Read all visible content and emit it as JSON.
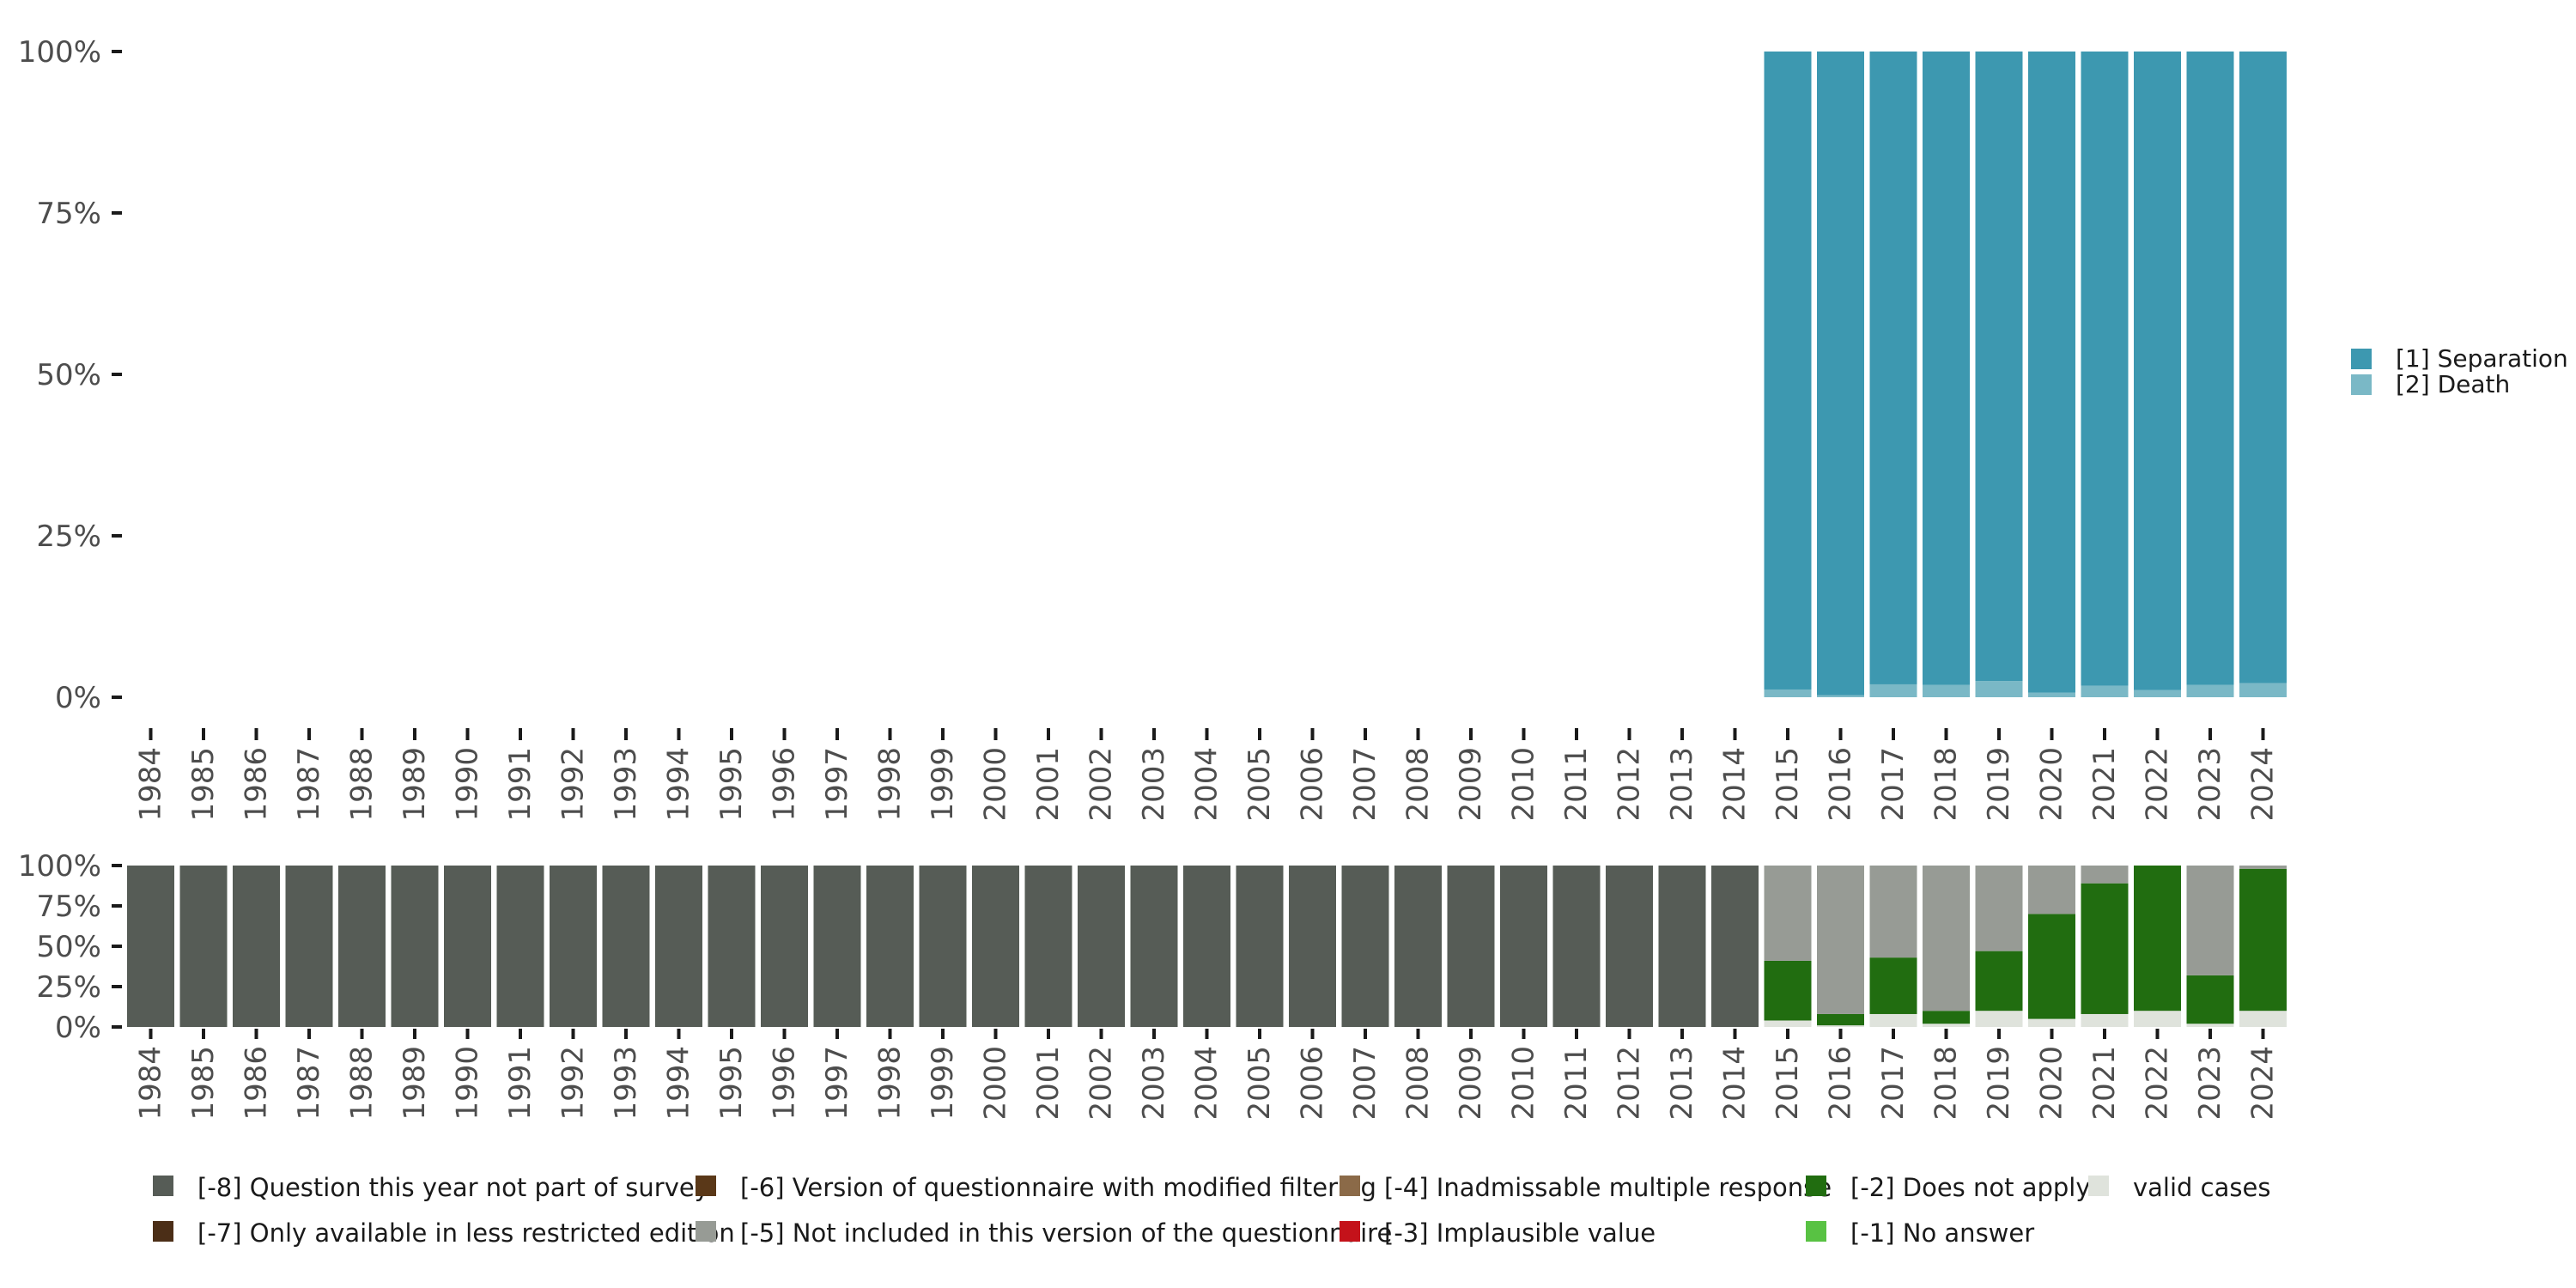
{
  "chart_data": [
    {
      "type": "bar",
      "stacked": true,
      "percent": true,
      "categories": [
        "1984",
        "1985",
        "1986",
        "1987",
        "1988",
        "1989",
        "1990",
        "1991",
        "1992",
        "1993",
        "1994",
        "1995",
        "1996",
        "1997",
        "1998",
        "1999",
        "2000",
        "2001",
        "2002",
        "2003",
        "2004",
        "2005",
        "2006",
        "2007",
        "2008",
        "2009",
        "2010",
        "2011",
        "2012",
        "2013",
        "2014",
        "2015",
        "2016",
        "2017",
        "2018",
        "2019",
        "2020",
        "2021",
        "2022",
        "2023",
        "2024"
      ],
      "ylim": [
        0,
        100
      ],
      "yticks": [
        "0%",
        "25%",
        "50%",
        "75%",
        "100%"
      ],
      "legend_position": "right",
      "series": [
        {
          "name": "[2] Death",
          "color": "#7ab8c6",
          "values": [
            null,
            null,
            null,
            null,
            null,
            null,
            null,
            null,
            null,
            null,
            null,
            null,
            null,
            null,
            null,
            null,
            null,
            null,
            null,
            null,
            null,
            null,
            null,
            null,
            null,
            null,
            null,
            null,
            null,
            null,
            null,
            1.2,
            0.3,
            2.0,
            1.9,
            2.5,
            0.7,
            1.8,
            1.1,
            1.9,
            2.2
          ]
        },
        {
          "name": "[1] Separation",
          "color": "#3d98b0",
          "values": [
            null,
            null,
            null,
            null,
            null,
            null,
            null,
            null,
            null,
            null,
            null,
            null,
            null,
            null,
            null,
            null,
            null,
            null,
            null,
            null,
            null,
            null,
            null,
            null,
            null,
            null,
            null,
            null,
            null,
            null,
            null,
            98.8,
            99.7,
            98.0,
            98.1,
            97.5,
            99.3,
            98.2,
            98.9,
            98.1,
            97.8
          ]
        }
      ]
    },
    {
      "type": "bar",
      "stacked": true,
      "percent": true,
      "categories": [
        "1984",
        "1985",
        "1986",
        "1987",
        "1988",
        "1989",
        "1990",
        "1991",
        "1992",
        "1993",
        "1994",
        "1995",
        "1996",
        "1997",
        "1998",
        "1999",
        "2000",
        "2001",
        "2002",
        "2003",
        "2004",
        "2005",
        "2006",
        "2007",
        "2008",
        "2009",
        "2010",
        "2011",
        "2012",
        "2013",
        "2014",
        "2015",
        "2016",
        "2017",
        "2018",
        "2019",
        "2020",
        "2021",
        "2022",
        "2023",
        "2024"
      ],
      "ylim": [
        0,
        100
      ],
      "yticks": [
        "0%",
        "25%",
        "50%",
        "75%",
        "100%"
      ],
      "legend_position": "bottom",
      "series": [
        {
          "name": "valid cases",
          "color": "#dfe3dc",
          "values": [
            0,
            0,
            0,
            0,
            0,
            0,
            0,
            0,
            0,
            0,
            0,
            0,
            0,
            0,
            0,
            0,
            0,
            0,
            0,
            0,
            0,
            0,
            0,
            0,
            0,
            0,
            0,
            0,
            0,
            0,
            0,
            4,
            1,
            8,
            2,
            10,
            5,
            8,
            10,
            2,
            10
          ]
        },
        {
          "name": "[-2] Does not apply",
          "color": "#216d10",
          "values": [
            0,
            0,
            0,
            0,
            0,
            0,
            0,
            0,
            0,
            0,
            0,
            0,
            0,
            0,
            0,
            0,
            0,
            0,
            0,
            0,
            0,
            0,
            0,
            0,
            0,
            0,
            0,
            0,
            0,
            0,
            0,
            37,
            7,
            35,
            8,
            37,
            65,
            81,
            90,
            30,
            88
          ]
        },
        {
          "name": "[-5] Not included in this version of the questionnaire",
          "color": "#979b95",
          "values": [
            0,
            0,
            0,
            0,
            0,
            0,
            0,
            0,
            0,
            0,
            0,
            0,
            0,
            0,
            0,
            0,
            0,
            0,
            0,
            0,
            0,
            0,
            0,
            0,
            0,
            0,
            0,
            0,
            0,
            0,
            0,
            59,
            92,
            57,
            90,
            53,
            30,
            11,
            0,
            68,
            2
          ]
        },
        {
          "name": "[-8] Question this year not part of survey",
          "color": "#565c56",
          "values": [
            100,
            100,
            100,
            100,
            100,
            100,
            100,
            100,
            100,
            100,
            100,
            100,
            100,
            100,
            100,
            100,
            100,
            100,
            100,
            100,
            100,
            100,
            100,
            100,
            100,
            100,
            100,
            100,
            100,
            100,
            100,
            0,
            0,
            0,
            0,
            0,
            0,
            0,
            0,
            0,
            0
          ]
        }
      ],
      "legend": [
        {
          "label": "[-8] Question this year not part of survey",
          "color": "#565c56"
        },
        {
          "label": "[-7] Only available in less restricted edition",
          "color": "#4b2e17"
        },
        {
          "label": "[-6] Version of questionnaire with modified filtering",
          "color": "#5a3818"
        },
        {
          "label": "[-5] Not included in this version of the questionnaire",
          "color": "#979b95"
        },
        {
          "label": "[-4] Inadmissable multiple response",
          "color": "#8b6a48"
        },
        {
          "label": "[-3] Implausible value",
          "color": "#c4121a"
        },
        {
          "label": "[-2] Does not apply",
          "color": "#216d10"
        },
        {
          "label": "[-1] No answer",
          "color": "#58c243"
        },
        {
          "label": "valid cases",
          "color": "#dfe3dc"
        }
      ]
    }
  ]
}
